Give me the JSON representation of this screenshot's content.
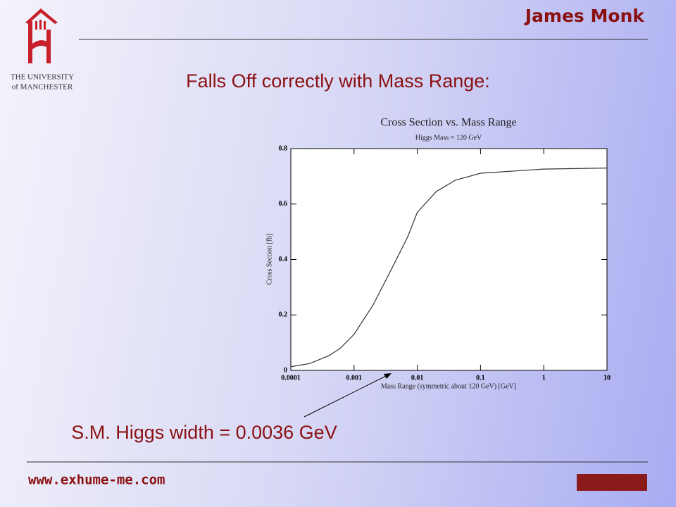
{
  "header": {
    "author": "James Monk",
    "university_line1": "THE UNIVERSITY",
    "university_line2": "of MANCHESTER"
  },
  "slide": {
    "heading": "Falls Off correctly with Mass Range:",
    "note": "S.M. Higgs width = 0.0036 GeV",
    "footer": "www.exhume-me.com"
  },
  "chart_data": {
    "type": "line",
    "title": "Cross Section vs. Mass Range",
    "subtitle": "Higgs Mass = 120 GeV",
    "x_label": "Mass Range (symmetric about 120 GeV) [GeV]",
    "y_label": "Cross Section [fb]",
    "x_scale": "log",
    "color": "#333333",
    "x": [
      0.0001,
      0.0002,
      0.0004,
      0.0006,
      0.001,
      0.002,
      0.004,
      0.007,
      0.01,
      0.02,
      0.04,
      0.1,
      1,
      10
    ],
    "values": [
      0.013,
      0.025,
      0.053,
      0.079,
      0.13,
      0.236,
      0.37,
      0.48,
      0.57,
      0.645,
      0.686,
      0.711,
      0.726,
      0.73
    ],
    "xlim": [
      0.0001,
      10
    ],
    "xticks": [
      0.0001,
      0.001,
      0.01,
      0.1,
      1,
      10
    ],
    "ylim": [
      0,
      0.8
    ],
    "yticks": [
      0,
      0.2,
      0.4,
      0.6,
      0.8
    ]
  }
}
